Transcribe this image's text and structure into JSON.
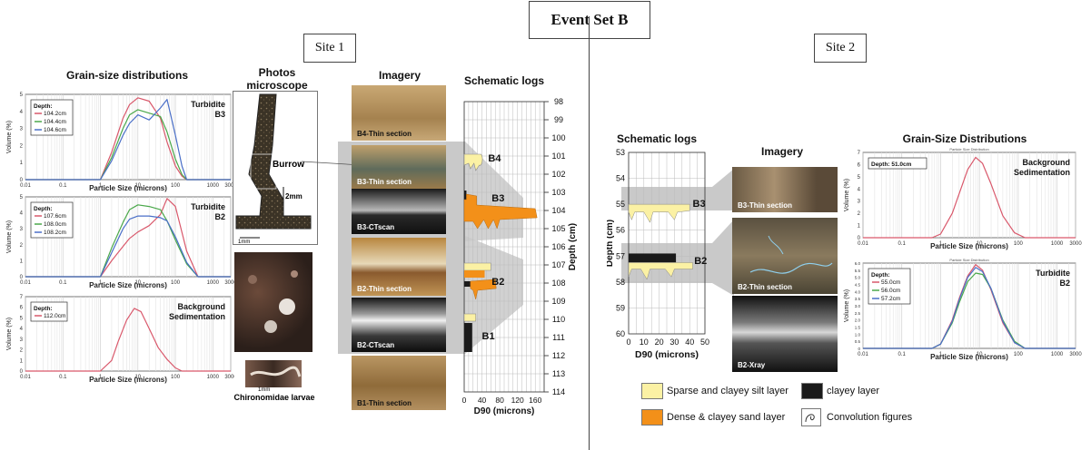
{
  "title": "Event Set B",
  "site1": {
    "label": "Site 1",
    "gsd_header": "Grain-size distributions",
    "photos_header": "Photos microscope",
    "imagery_header": "Imagery",
    "schematic_header": "Schematic logs",
    "burrow": "Burrow",
    "scale_2mm": "2mm",
    "scale_1mm": "1mm",
    "larvae": "Chironomidae larvae",
    "images": [
      "B4-Thin section",
      "B3-Thin section",
      "B3-CTscan",
      "B2-Thin section",
      "B2-CTscan",
      "B1-Thin section"
    ],
    "log_labels": [
      "B4",
      "B3",
      "B2",
      "B1"
    ],
    "depth_label": "Depth (cm)",
    "d90_label": "D90 (microns)"
  },
  "site2": {
    "label": "Site 2",
    "schematic_header": "Schematic logs",
    "imagery_header": "Imagery",
    "gsd_header": "Grain-Size Distributions",
    "images": [
      "B3-Thin section",
      "B2-Thin section",
      "B2-Xray"
    ],
    "log_labels": [
      "B3",
      "B2"
    ],
    "depth_label": "Depth (cm)",
    "d90_label": "D90 (microns)"
  },
  "legend": {
    "sparse": "Sparse and clayey silt layer",
    "dense": "Dense & clayey sand layer",
    "clayey": "clayey layer",
    "convolution": "Convolution figures",
    "colors": {
      "sparse": "#fbf1a4",
      "dense": "#f39019",
      "clayey": "#1a1a1a"
    }
  },
  "chart_data": [
    {
      "type": "line",
      "title": "Turbidite B3",
      "legend_title": "Depth:",
      "xlabel": "Particle Size (microns)",
      "ylabel": "Volume (%)",
      "xscale": "log",
      "xlim": [
        0.01,
        3000
      ],
      "ylim": [
        0,
        5
      ],
      "xticks": [
        "0.01",
        "0.1",
        "1",
        "10",
        "100",
        "1000",
        "3000"
      ],
      "yticks": [
        "0",
        "1",
        "2",
        "3",
        "4",
        "5"
      ],
      "x": [
        1,
        2,
        4,
        6,
        10,
        20,
        40,
        60,
        100,
        150,
        200
      ],
      "series": [
        {
          "name": "104.2cm",
          "color": "#d9586b",
          "values": [
            0,
            1.6,
            3.6,
            4.4,
            4.8,
            4.6,
            3.6,
            2.2,
            0.8,
            0.2,
            0
          ]
        },
        {
          "name": "104.4cm",
          "color": "#4aa84a",
          "values": [
            0,
            1.3,
            3.0,
            3.8,
            4.1,
            3.9,
            3.7,
            2.8,
            1.2,
            0.3,
            0
          ]
        },
        {
          "name": "104.6cm",
          "color": "#4a6fc8",
          "values": [
            0,
            1.1,
            2.6,
            3.3,
            3.8,
            3.5,
            4.2,
            4.7,
            2.6,
            0.8,
            0
          ]
        }
      ]
    },
    {
      "type": "line",
      "title": "Turbidite B2",
      "legend_title": "Depth:",
      "xlabel": "Particle Size (microns)",
      "ylabel": "Volume (%)",
      "xscale": "log",
      "xlim": [
        0.01,
        3000
      ],
      "ylim": [
        0,
        5
      ],
      "xticks": [
        "0.01",
        "0.1",
        "1",
        "10",
        "100",
        "1000",
        "3000"
      ],
      "yticks": [
        "0",
        "1",
        "2",
        "3",
        "4",
        "5"
      ],
      "x": [
        1,
        2,
        4,
        6,
        10,
        20,
        40,
        60,
        100,
        200,
        400
      ],
      "series": [
        {
          "name": "107.6cm",
          "color": "#d9586b",
          "values": [
            0,
            1.0,
            1.9,
            2.4,
            2.8,
            3.2,
            3.9,
            4.9,
            4.4,
            1.6,
            0
          ]
        },
        {
          "name": "108.0cm",
          "color": "#4aa84a",
          "values": [
            0,
            1.8,
            3.4,
            4.2,
            4.5,
            4.4,
            4.2,
            3.5,
            2.3,
            0.8,
            0
          ]
        },
        {
          "name": "108.2cm",
          "color": "#4a6fc8",
          "values": [
            0,
            1.5,
            3.0,
            3.6,
            3.8,
            3.8,
            3.7,
            3.5,
            2.5,
            0.9,
            0
          ]
        }
      ]
    },
    {
      "type": "line",
      "title": "Background Sedimentation",
      "legend_title": "Depth:",
      "xlabel": "Particle Size (microns)",
      "ylabel": "Volume (%)",
      "xscale": "log",
      "xlim": [
        0.01,
        3000
      ],
      "ylim": [
        0,
        7
      ],
      "xticks": [
        "0.01",
        "0.1",
        "1",
        "10",
        "100",
        "1000",
        "3000"
      ],
      "yticks": [
        "0",
        "1",
        "2",
        "3",
        "4",
        "5",
        "6",
        "7"
      ],
      "x": [
        1,
        2,
        3,
        5,
        8,
        12,
        20,
        35,
        60,
        100,
        150
      ],
      "series": [
        {
          "name": "112.0cm",
          "color": "#d9586b",
          "values": [
            0,
            1.0,
            2.8,
            4.8,
            5.9,
            5.6,
            4.0,
            2.2,
            1.1,
            0.3,
            0
          ]
        }
      ]
    },
    {
      "type": "line",
      "title": "Background Sedimentation",
      "subtitle": "Particle Size Distribution",
      "legend_title": "Depth: 51.0cm",
      "xlabel": "Particle Size (microns)",
      "ylabel": "Volume (%)",
      "xscale": "log",
      "xlim": [
        0.01,
        3000
      ],
      "ylim": [
        0,
        7
      ],
      "xticks": [
        "0.01",
        "0.1",
        "1",
        "10",
        "100",
        "1000",
        "3000"
      ],
      "yticks": [
        "0",
        "1",
        "2",
        "3",
        "4",
        "5",
        "6",
        "7"
      ],
      "x": [
        0.6,
        1,
        2,
        3,
        5,
        8,
        12,
        20,
        40,
        80,
        150
      ],
      "series": [
        {
          "name": "51.0cm",
          "color": "#d9586b",
          "values": [
            0,
            0.3,
            2.0,
            3.6,
            5.6,
            6.6,
            6.1,
            4.4,
            1.8,
            0.4,
            0
          ]
        }
      ]
    },
    {
      "type": "line",
      "title": "Turbidite B2",
      "subtitle": "Particle Size Distribution",
      "legend_title": "Depth:",
      "xlabel": "Particle Size (microns)",
      "ylabel": "Volume (%)",
      "xscale": "log",
      "xlim": [
        0.01,
        3000
      ],
      "ylim": [
        0,
        6
      ],
      "xticks": [
        "0.01",
        "0.1",
        "1",
        "10",
        "100",
        "1000",
        "3000"
      ],
      "yticks": [
        "0",
        "0.5",
        "1.0",
        "1.5",
        "2.0",
        "2.5",
        "3.0",
        "3.5",
        "4.0",
        "4.5",
        "5.0",
        "5.5",
        "6.0"
      ],
      "x": [
        0.6,
        1,
        2,
        3,
        5,
        8,
        12,
        20,
        40,
        80,
        150
      ],
      "series": [
        {
          "name": "55.0cm",
          "color": "#d9586b",
          "values": [
            0,
            0.3,
            2.0,
            3.5,
            5.1,
            5.9,
            5.5,
            4.1,
            1.8,
            0.4,
            0
          ]
        },
        {
          "name": "56.0cm",
          "color": "#4aa84a",
          "values": [
            0,
            0.3,
            1.8,
            3.2,
            4.7,
            5.3,
            5.2,
            4.2,
            2.0,
            0.5,
            0
          ]
        },
        {
          "name": "57.2cm",
          "color": "#4a6fc8",
          "values": [
            0,
            0.3,
            1.9,
            3.4,
            5.0,
            5.7,
            5.4,
            4.2,
            1.9,
            0.4,
            0
          ]
        }
      ]
    }
  ]
}
